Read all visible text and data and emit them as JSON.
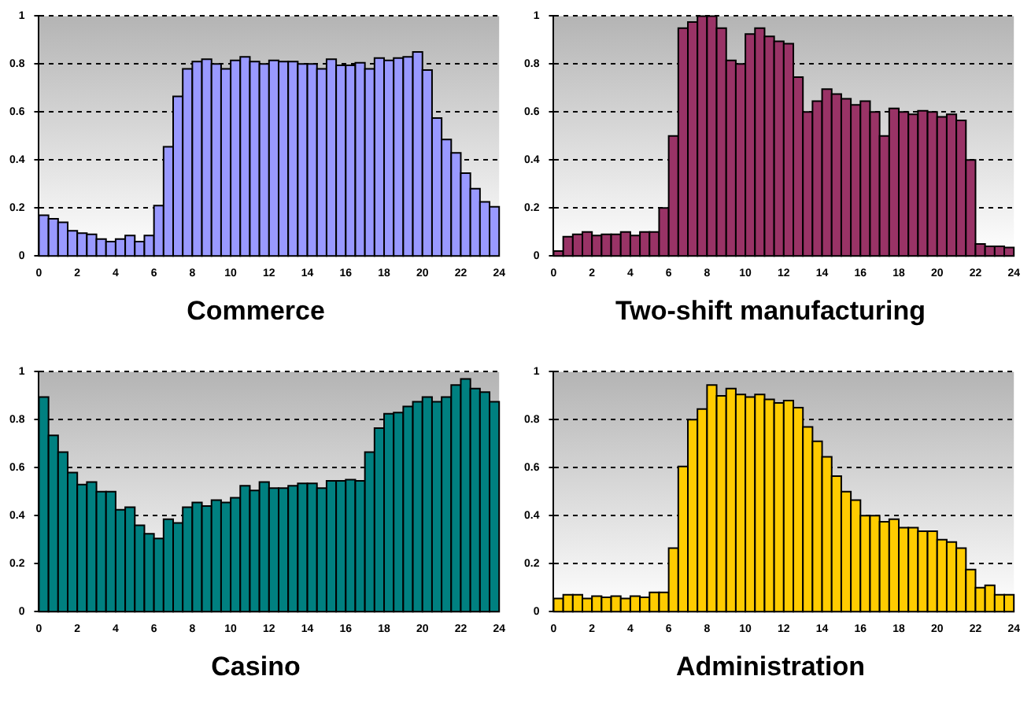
{
  "chart_data": [
    {
      "type": "histogram",
      "title": "Commerce",
      "color": "#9999ff",
      "bins": [
        0,
        0.5,
        1,
        1.5,
        2,
        2.5,
        3,
        3.5,
        4,
        4.5,
        5,
        5.5,
        6,
        6.5,
        7,
        7.5,
        8,
        8.5,
        9,
        9.5,
        10,
        10.5,
        11,
        11.5,
        12,
        12.5,
        13,
        13.5,
        14,
        14.5,
        15,
        15.5,
        16,
        16.5,
        17,
        17.5,
        18,
        18.5,
        19,
        19.5,
        20,
        20.5,
        21,
        21.5,
        22,
        22.5,
        23,
        23.5,
        24
      ],
      "values": [
        0.17,
        0.155,
        0.14,
        0.105,
        0.095,
        0.09,
        0.07,
        0.06,
        0.07,
        0.085,
        0.06,
        0.085,
        0.21,
        0.455,
        0.665,
        0.78,
        0.81,
        0.82,
        0.8,
        0.78,
        0.815,
        0.83,
        0.81,
        0.8,
        0.815,
        0.81,
        0.81,
        0.8,
        0.8,
        0.78,
        0.82,
        0.795,
        0.795,
        0.805,
        0.78,
        0.825,
        0.815,
        0.825,
        0.83,
        0.85,
        0.775,
        0.575,
        0.485,
        0.43,
        0.345,
        0.28,
        0.225,
        0.205
      ],
      "xlim": [
        0,
        24
      ],
      "xticks": [
        0,
        2,
        4,
        6,
        8,
        10,
        12,
        14,
        16,
        18,
        20,
        22,
        24
      ],
      "ylim": [
        0,
        1
      ],
      "yticks": [
        0,
        0.2,
        0.4,
        0.6,
        0.8,
        1
      ],
      "grid": "y"
    },
    {
      "type": "histogram",
      "title": "Two-shift manufacturing",
      "color": "#993366",
      "bins": [
        0,
        0.5,
        1,
        1.5,
        2,
        2.5,
        3,
        3.5,
        4,
        4.5,
        5,
        5.5,
        6,
        6.5,
        7,
        7.5,
        8,
        8.5,
        9,
        9.5,
        10,
        10.5,
        11,
        11.5,
        12,
        12.5,
        13,
        13.5,
        14,
        14.5,
        15,
        15.5,
        16,
        16.5,
        17,
        17.5,
        18,
        18.5,
        19,
        19.5,
        20,
        20.5,
        21,
        21.5,
        22,
        22.5,
        23,
        23.5,
        24
      ],
      "values": [
        0.02,
        0.08,
        0.09,
        0.1,
        0.085,
        0.09,
        0.09,
        0.1,
        0.085,
        0.1,
        0.1,
        0.2,
        0.5,
        0.95,
        0.975,
        1,
        1,
        0.95,
        0.815,
        0.8,
        0.925,
        0.95,
        0.915,
        0.895,
        0.885,
        0.745,
        0.6,
        0.645,
        0.695,
        0.675,
        0.655,
        0.63,
        0.645,
        0.6,
        0.5,
        0.615,
        0.6,
        0.59,
        0.605,
        0.6,
        0.58,
        0.59,
        0.565,
        0.4,
        0.05,
        0.04,
        0.04,
        0.035
      ],
      "xlim": [
        0,
        24
      ],
      "xticks": [
        0,
        2,
        4,
        6,
        8,
        10,
        12,
        14,
        16,
        18,
        20,
        22,
        24
      ],
      "ylim": [
        0,
        1
      ],
      "yticks": [
        0,
        0.2,
        0.4,
        0.6,
        0.8,
        1
      ],
      "grid": "y"
    },
    {
      "type": "histogram",
      "title": "Casino",
      "color": "#008080",
      "bins": [
        0,
        0.5,
        1,
        1.5,
        2,
        2.5,
        3,
        3.5,
        4,
        4.5,
        5,
        5.5,
        6,
        6.5,
        7,
        7.5,
        8,
        8.5,
        9,
        9.5,
        10,
        10.5,
        11,
        11.5,
        12,
        12.5,
        13,
        13.5,
        14,
        14.5,
        15,
        15.5,
        16,
        16.5,
        17,
        17.5,
        18,
        18.5,
        19,
        19.5,
        20,
        20.5,
        21,
        21.5,
        22,
        22.5,
        23,
        23.5,
        24
      ],
      "values": [
        0.895,
        0.735,
        0.665,
        0.58,
        0.53,
        0.54,
        0.5,
        0.5,
        0.425,
        0.435,
        0.36,
        0.325,
        0.305,
        0.385,
        0.37,
        0.435,
        0.455,
        0.44,
        0.465,
        0.455,
        0.475,
        0.525,
        0.505,
        0.54,
        0.515,
        0.515,
        0.525,
        0.535,
        0.535,
        0.515,
        0.545,
        0.545,
        0.55,
        0.545,
        0.665,
        0.765,
        0.825,
        0.83,
        0.855,
        0.875,
        0.895,
        0.875,
        0.895,
        0.945,
        0.97,
        0.93,
        0.915,
        0.875
      ],
      "xlim": [
        0,
        24
      ],
      "xticks": [
        0,
        2,
        4,
        6,
        8,
        10,
        12,
        14,
        16,
        18,
        20,
        22,
        24
      ],
      "ylim": [
        0,
        1
      ],
      "yticks": [
        0,
        0.2,
        0.4,
        0.6,
        0.8,
        1
      ],
      "grid": "y"
    },
    {
      "type": "histogram",
      "title": "Administration",
      "color": "#ffcc00",
      "bins": [
        0,
        0.5,
        1,
        1.5,
        2,
        2.5,
        3,
        3.5,
        4,
        4.5,
        5,
        5.5,
        6,
        6.5,
        7,
        7.5,
        8,
        8.5,
        9,
        9.5,
        10,
        10.5,
        11,
        11.5,
        12,
        12.5,
        13,
        13.5,
        14,
        14.5,
        15,
        15.5,
        16,
        16.5,
        17,
        17.5,
        18,
        18.5,
        19,
        19.5,
        20,
        20.5,
        21,
        21.5,
        22,
        22.5,
        23,
        23.5,
        24
      ],
      "values": [
        0.055,
        0.07,
        0.07,
        0.055,
        0.065,
        0.06,
        0.065,
        0.055,
        0.065,
        0.06,
        0.08,
        0.08,
        0.265,
        0.605,
        0.8,
        0.845,
        0.945,
        0.9,
        0.93,
        0.905,
        0.895,
        0.905,
        0.885,
        0.87,
        0.88,
        0.85,
        0.77,
        0.71,
        0.645,
        0.565,
        0.5,
        0.465,
        0.4,
        0.4,
        0.375,
        0.385,
        0.35,
        0.35,
        0.335,
        0.335,
        0.3,
        0.29,
        0.265,
        0.175,
        0.1,
        0.11,
        0.07,
        0.07
      ],
      "xlim": [
        0,
        24
      ],
      "xticks": [
        0,
        2,
        4,
        6,
        8,
        10,
        12,
        14,
        16,
        18,
        20,
        22,
        24
      ],
      "ylim": [
        0,
        1
      ],
      "yticks": [
        0,
        0.2,
        0.4,
        0.6,
        0.8,
        1
      ],
      "grid": "y"
    }
  ]
}
